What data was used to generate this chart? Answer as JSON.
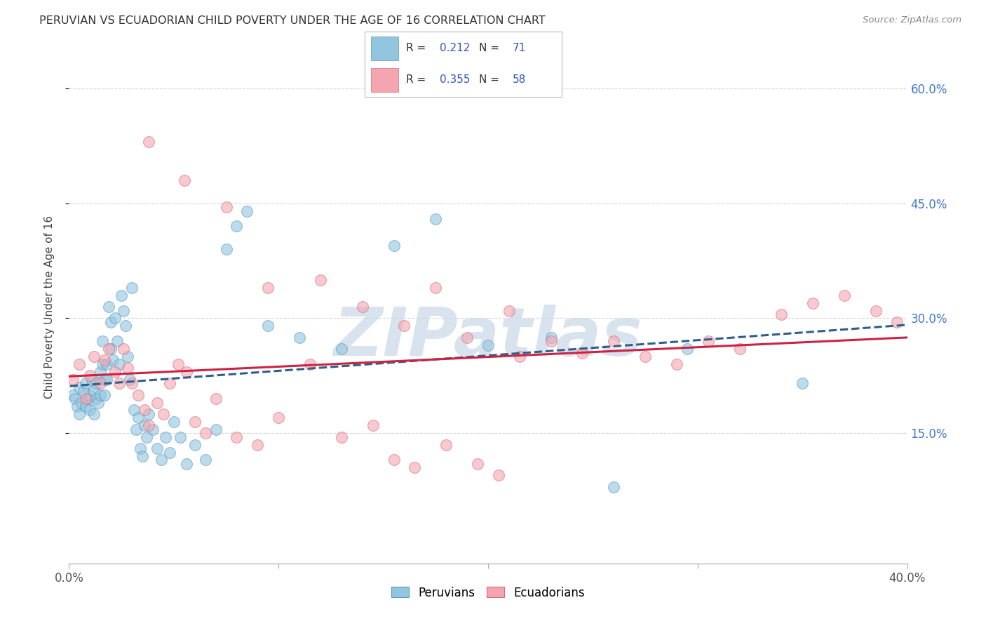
{
  "title": "PERUVIAN VS ECUADORIAN CHILD POVERTY UNDER THE AGE OF 16 CORRELATION CHART",
  "source": "Source: ZipAtlas.com",
  "ylabel": "Child Poverty Under the Age of 16",
  "xlim": [
    0.0,
    0.4
  ],
  "ylim": [
    -0.02,
    0.65
  ],
  "xtick_positions": [
    0.0,
    0.1,
    0.2,
    0.3,
    0.4
  ],
  "xtick_labels": [
    "0.0%",
    "",
    "",
    "",
    "40.0%"
  ],
  "ytick_vals_right": [
    0.15,
    0.3,
    0.45,
    0.6
  ],
  "ytick_labels_right": [
    "15.0%",
    "30.0%",
    "45.0%",
    "60.0%"
  ],
  "grid_color": "#cccccc",
  "background_color": "#ffffff",
  "peruvian_color": "#92c5de",
  "peruvian_edge_color": "#5b9abf",
  "ecuadorian_color": "#f4a5b0",
  "ecuadorian_edge_color": "#d96b7e",
  "peruvian_line_color": "#2c5f8a",
  "ecuadorian_line_color": "#cc2244",
  "R_peru": 0.212,
  "N_peru": 71,
  "R_ecuador": 0.355,
  "N_ecuador": 58,
  "watermark": "ZIPatlas",
  "legend_R_N_color": "#3355bb",
  "peru_x": [
    0.002,
    0.003,
    0.004,
    0.005,
    0.005,
    0.006,
    0.007,
    0.008,
    0.008,
    0.009,
    0.01,
    0.01,
    0.011,
    0.012,
    0.012,
    0.013,
    0.013,
    0.014,
    0.015,
    0.015,
    0.016,
    0.016,
    0.017,
    0.017,
    0.018,
    0.018,
    0.019,
    0.02,
    0.02,
    0.021,
    0.022,
    0.023,
    0.024,
    0.025,
    0.026,
    0.027,
    0.028,
    0.029,
    0.03,
    0.031,
    0.032,
    0.033,
    0.034,
    0.035,
    0.036,
    0.037,
    0.038,
    0.04,
    0.042,
    0.044,
    0.046,
    0.048,
    0.05,
    0.053,
    0.056,
    0.06,
    0.065,
    0.07,
    0.075,
    0.08,
    0.085,
    0.095,
    0.11,
    0.13,
    0.155,
    0.175,
    0.2,
    0.23,
    0.26,
    0.295,
    0.35
  ],
  "peru_y": [
    0.2,
    0.195,
    0.185,
    0.21,
    0.175,
    0.19,
    0.205,
    0.185,
    0.215,
    0.195,
    0.2,
    0.18,
    0.22,
    0.205,
    0.175,
    0.195,
    0.215,
    0.19,
    0.23,
    0.2,
    0.27,
    0.24,
    0.22,
    0.2,
    0.24,
    0.22,
    0.315,
    0.295,
    0.26,
    0.245,
    0.3,
    0.27,
    0.24,
    0.33,
    0.31,
    0.29,
    0.25,
    0.22,
    0.34,
    0.18,
    0.155,
    0.17,
    0.13,
    0.12,
    0.16,
    0.145,
    0.175,
    0.155,
    0.13,
    0.115,
    0.145,
    0.125,
    0.165,
    0.145,
    0.11,
    0.135,
    0.115,
    0.155,
    0.39,
    0.42,
    0.44,
    0.29,
    0.275,
    0.26,
    0.395,
    0.43,
    0.265,
    0.275,
    0.08,
    0.26,
    0.215
  ],
  "ecuador_x": [
    0.002,
    0.005,
    0.008,
    0.01,
    0.012,
    0.015,
    0.017,
    0.019,
    0.022,
    0.024,
    0.026,
    0.028,
    0.03,
    0.033,
    0.036,
    0.038,
    0.042,
    0.045,
    0.048,
    0.052,
    0.056,
    0.06,
    0.065,
    0.07,
    0.08,
    0.09,
    0.1,
    0.115,
    0.13,
    0.145,
    0.155,
    0.165,
    0.18,
    0.195,
    0.205,
    0.215,
    0.23,
    0.245,
    0.26,
    0.275,
    0.29,
    0.305,
    0.32,
    0.34,
    0.355,
    0.37,
    0.385,
    0.395,
    0.038,
    0.055,
    0.075,
    0.095,
    0.12,
    0.14,
    0.16,
    0.175,
    0.19,
    0.21
  ],
  "ecuador_y": [
    0.22,
    0.24,
    0.195,
    0.225,
    0.25,
    0.215,
    0.245,
    0.26,
    0.23,
    0.215,
    0.26,
    0.235,
    0.215,
    0.2,
    0.18,
    0.16,
    0.19,
    0.175,
    0.215,
    0.24,
    0.23,
    0.165,
    0.15,
    0.195,
    0.145,
    0.135,
    0.17,
    0.24,
    0.145,
    0.16,
    0.115,
    0.105,
    0.135,
    0.11,
    0.095,
    0.25,
    0.27,
    0.255,
    0.27,
    0.25,
    0.24,
    0.27,
    0.26,
    0.305,
    0.32,
    0.33,
    0.31,
    0.295,
    0.53,
    0.48,
    0.445,
    0.34,
    0.35,
    0.315,
    0.29,
    0.34,
    0.275,
    0.31
  ]
}
